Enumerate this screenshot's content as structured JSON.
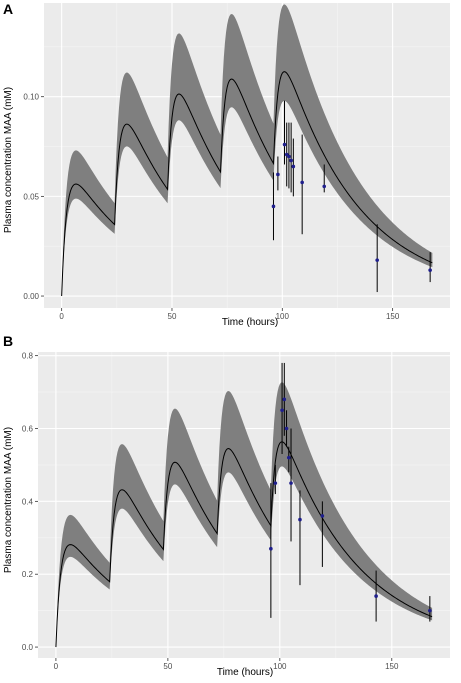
{
  "colors": {
    "panel_background": "#ebebeb",
    "grid_major": "#ffffff",
    "grid_minor": "#f5f5f5",
    "band_fill": "#7f7f7f",
    "median_line": "#000000",
    "observed_point": "#1f1f8c",
    "error_bar": "#000000",
    "tick_text": "#4d4d4d"
  },
  "chart_data": [
    {
      "type": "line",
      "panel_label": "A",
      "title": "",
      "xlabel": "Time (hours)",
      "ylabel": "Plasma concentration MAA (mM)",
      "xlim": [
        -8,
        176
      ],
      "ylim": [
        -0.006,
        0.147
      ],
      "x_ticks": [
        0,
        50,
        100,
        150
      ],
      "x_tick_labels": [
        "0",
        "50",
        "100",
        "150"
      ],
      "y_ticks": [
        0.0,
        0.05,
        0.1
      ],
      "y_tick_labels": [
        "0.00",
        "0.05",
        "0.10"
      ],
      "grid": true,
      "legend": "none",
      "model": {
        "description_series": "median with 90% band",
        "dose_interval_h": 24,
        "n_doses": 5,
        "absorption_rate": 0.45,
        "elimination_rate": 0.0295,
        "median_scale": 0.0728,
        "lower_factor": 0.87,
        "upper_factor": 1.3,
        "x_max": 168
      },
      "observed": {
        "x": [
          96,
          98,
          101,
          102,
          103,
          104,
          105,
          109,
          119,
          143,
          167
        ],
        "y": [
          0.045,
          0.061,
          0.076,
          0.071,
          0.07,
          0.068,
          0.065,
          0.057,
          0.055,
          0.018,
          0.013
        ],
        "y_low": [
          0.028,
          0.053,
          0.066,
          0.055,
          0.054,
          0.052,
          0.05,
          0.031,
          0.052,
          0.002,
          0.007
        ],
        "y_high": [
          0.062,
          0.07,
          0.098,
          0.087,
          0.087,
          0.087,
          0.079,
          0.081,
          0.066,
          0.036,
          0.022
        ]
      }
    },
    {
      "type": "line",
      "panel_label": "B",
      "title": "",
      "xlabel": "Time (hours)",
      "ylabel": "Plasma concentration MAA (mM)",
      "xlim": [
        -8,
        176
      ],
      "ylim": [
        -0.03,
        0.81
      ],
      "x_ticks": [
        0,
        50,
        100,
        150
      ],
      "x_tick_labels": [
        "0",
        "50",
        "100",
        "150"
      ],
      "y_ticks": [
        0.0,
        0.2,
        0.4,
        0.6,
        0.8
      ],
      "y_tick_labels": [
        "0.0",
        "0.2",
        "0.4",
        "0.6",
        "0.8"
      ],
      "grid": true,
      "legend": "none",
      "model": {
        "description_series": "median with 90% band",
        "dose_interval_h": 24,
        "n_doses": 5,
        "absorption_rate": 0.45,
        "elimination_rate": 0.0295,
        "median_scale": 0.3645,
        "lower_factor": 0.88,
        "upper_factor": 1.29,
        "x_max": 168
      },
      "observed": {
        "x": [
          96,
          98,
          101,
          102,
          103,
          104,
          105,
          109,
          119,
          143,
          167
        ],
        "y": [
          0.27,
          0.45,
          0.65,
          0.68,
          0.6,
          0.52,
          0.45,
          0.35,
          0.36,
          0.14,
          0.1
        ],
        "y_low": [
          0.08,
          0.42,
          0.53,
          0.58,
          0.55,
          0.48,
          0.29,
          0.17,
          0.22,
          0.07,
          0.07
        ],
        "y_high": [
          0.45,
          0.5,
          0.78,
          0.78,
          0.65,
          0.55,
          0.6,
          0.43,
          0.4,
          0.21,
          0.14
        ]
      }
    }
  ]
}
